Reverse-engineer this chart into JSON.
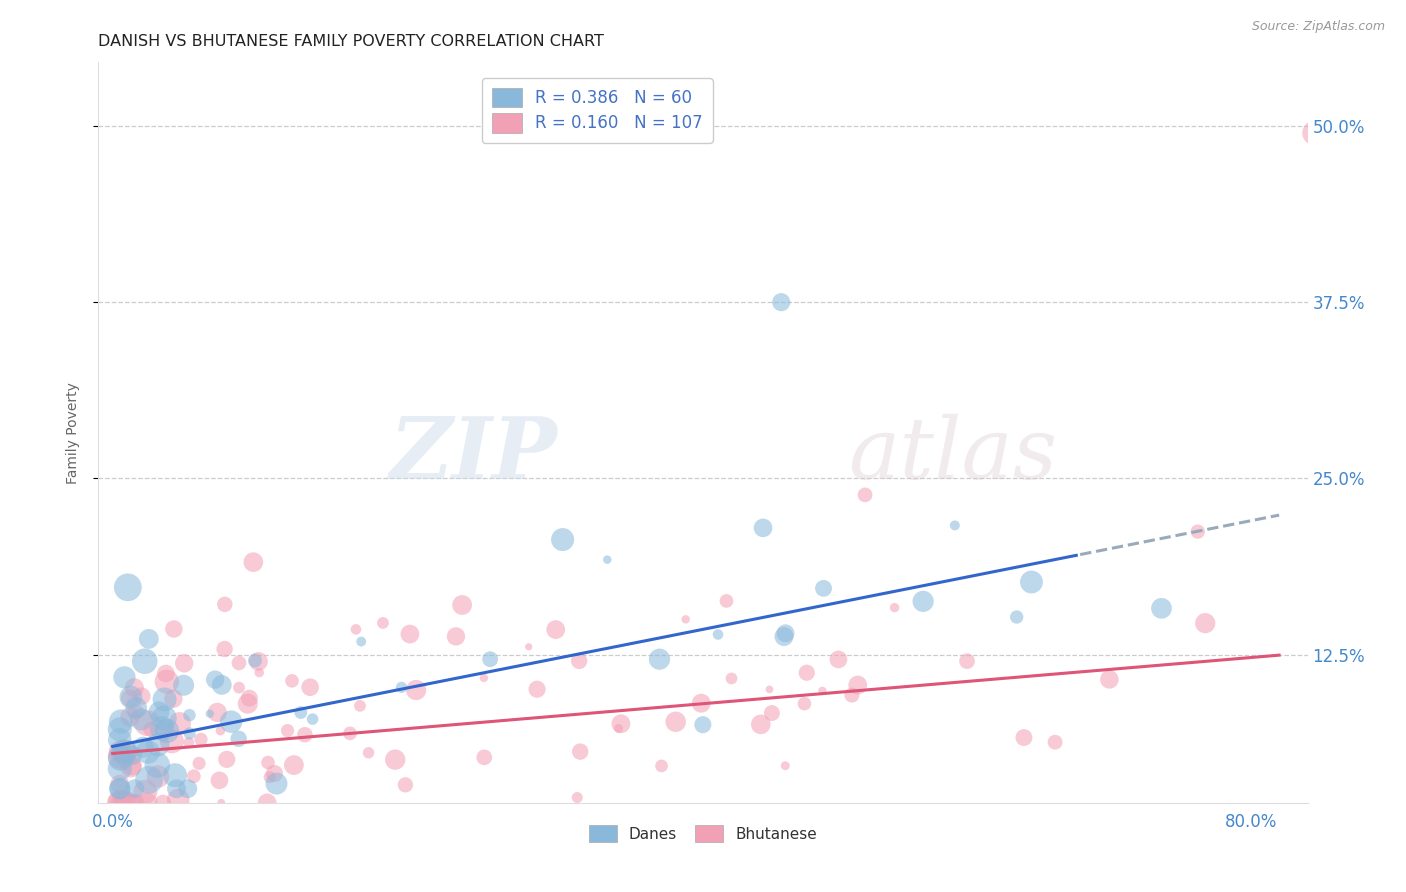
{
  "title": "DANISH VS BHUTANESE FAMILY POVERTY CORRELATION CHART",
  "source": "Source: ZipAtlas.com",
  "ylabel": "Family Poverty",
  "ytick_labels": [
    "12.5%",
    "25.0%",
    "37.5%",
    "50.0%"
  ],
  "ytick_values": [
    0.125,
    0.25,
    0.375,
    0.5
  ],
  "xlim": [
    -0.01,
    0.84
  ],
  "ylim": [
    0.02,
    0.545
  ],
  "danes_R": 0.386,
  "danes_N": 60,
  "bhutanese_R": 0.16,
  "bhutanese_N": 107,
  "danes_color": "#89b8db",
  "bhutanese_color": "#f2a0b5",
  "danes_line_color": "#3366cc",
  "danes_line_dash_color": "#99aabb",
  "bhutanese_line_color": "#dd5577",
  "danes_intercept": 0.06,
  "danes_slope": 0.2,
  "bhutanese_intercept": 0.055,
  "bhutanese_slope": 0.085,
  "legend_R_color": "#4472c4",
  "watermark_zip": "ZIP",
  "watermark_atlas": "atlas",
  "title_fontsize": 11.5,
  "source_fontsize": 9
}
